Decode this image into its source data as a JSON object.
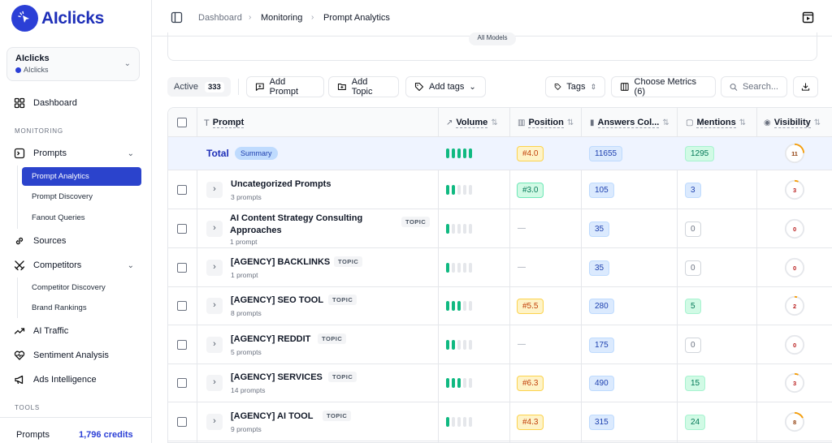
{
  "app": {
    "name": "AIclicks",
    "brand_color": "#2b3fd6"
  },
  "workspace": {
    "name": "AIclicks",
    "sub": "AIclicks"
  },
  "sidebar": {
    "dashboard": "Dashboard",
    "monitoring_label": "MONITORING",
    "prompts": "Prompts",
    "prompt_analytics": "Prompt Analytics",
    "prompt_discovery": "Prompt Discovery",
    "fanout_queries": "Fanout Queries",
    "sources": "Sources",
    "competitors": "Competitors",
    "competitor_discovery": "Competitor Discovery",
    "brand_rankings": "Brand Rankings",
    "ai_traffic": "AI Traffic",
    "sentiment_analysis": "Sentiment Analysis",
    "ads_intelligence": "Ads Intelligence",
    "tools_label": "TOOLS",
    "credits_label": "Prompts",
    "credits_value": "1,796 credits"
  },
  "breadcrumb": {
    "home": "Dashboard",
    "section": "Monitoring",
    "page": "Prompt Analytics"
  },
  "models_chip": "All Models",
  "toolbar": {
    "active_label": "Active",
    "active_count": "333",
    "add_prompt": "Add Prompt",
    "add_topic": "Add Topic",
    "add_tags": "Add tags",
    "tags": "Tags",
    "choose_metrics": "Choose Metrics (6)",
    "search_placeholder": "Search..."
  },
  "table": {
    "columns": {
      "prompt": "Prompt",
      "volume": "Volume",
      "position": "Position",
      "answers": "Answers Col...",
      "mentions": "Mentions",
      "visibility": "Visibility"
    },
    "total": {
      "label": "Total",
      "badge": "Summary",
      "volume": 5,
      "position": "#4.0",
      "answers": "11655",
      "mentions": "1295",
      "visibility": "11"
    },
    "rows": [
      {
        "name": "Uncategorized Prompts",
        "count": "3 prompts",
        "topic": "",
        "volume": 2,
        "position": "#3.0",
        "answers": "105",
        "mentions": "3",
        "visibility": "3"
      },
      {
        "name": "AI Content Strategy Consulting Approaches",
        "count": "1 prompt",
        "topic": "TOPIC",
        "volume": 1,
        "position": "—",
        "answers": "35",
        "mentions": "0",
        "visibility": "0"
      },
      {
        "name": "[AGENCY] BACKLINKS",
        "count": "1 prompt",
        "topic": "TOPIC",
        "volume": 1,
        "position": "—",
        "answers": "35",
        "mentions": "0",
        "visibility": "0"
      },
      {
        "name": "[AGENCY] SEO TOOL",
        "count": "8 prompts",
        "topic": "TOPIC",
        "volume": 3,
        "position": "#5.5",
        "answers": "280",
        "mentions": "5",
        "visibility": "2"
      },
      {
        "name": "[AGENCY] REDDIT",
        "count": "5 prompts",
        "topic": "TOPIC",
        "volume": 2,
        "position": "—",
        "answers": "175",
        "mentions": "0",
        "visibility": "0"
      },
      {
        "name": "[AGENCY] SERVICES",
        "count": "14 prompts",
        "topic": "TOPIC",
        "volume": 3,
        "position": "#6.3",
        "answers": "490",
        "mentions": "15",
        "visibility": "3"
      },
      {
        "name": "[AGENCY] AI TOOL",
        "count": "9 prompts",
        "topic": "TOPIC",
        "volume": 1,
        "position": "#4.3",
        "answers": "315",
        "mentions": "24",
        "visibility": "8"
      }
    ]
  }
}
